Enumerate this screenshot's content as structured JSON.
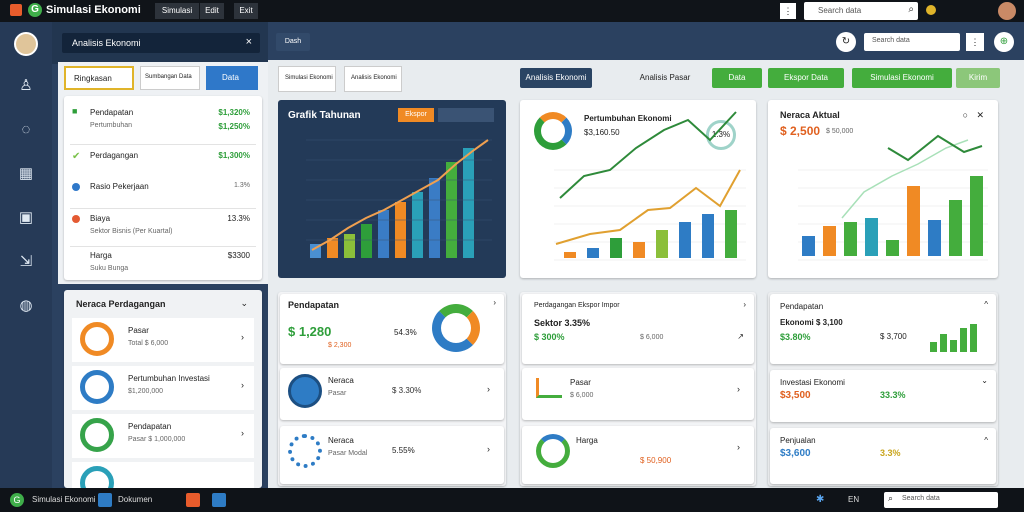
{
  "app": {
    "title": "Simulasi Ekonomi",
    "tab1": "Simulasi",
    "tab2": "Edit",
    "tab3": "Exit"
  },
  "top": {
    "search_placeholder": "Search data"
  },
  "sidebar": {
    "header": "Analisis Ekonomi",
    "panel_title": "Ringkasan Ekonomi",
    "tab_a": "Ringkasan",
    "tab_b": "Sumbangan Data",
    "tab_c": "Data"
  },
  "summary": [
    {
      "label": "Pendapatan",
      "sub": "Pertumbuhan",
      "value": "$1,320%",
      "sub2": "$1,250%"
    },
    {
      "label": "Perdagangan",
      "value": "$1,300%"
    },
    {
      "label": "Rasio Pekerjaan",
      "value": "1.3%"
    },
    {
      "label": "Biaya",
      "value": "13.3%",
      "sub": "Sektor Bisnis (Per Kuartal)"
    },
    {
      "label": "Harga",
      "value": "$3300",
      "sub": "Suku Bunga"
    }
  ],
  "lower_left": {
    "title": "Neraca Perdagangan",
    "items": [
      {
        "label": "Pasar",
        "sub": "Total $ 6,000"
      },
      {
        "label": "Pertumbuhan Investasi",
        "sub": "$1,200,000"
      },
      {
        "label": "Pendapatan",
        "sub": "Pasar $ 1,000,000"
      }
    ]
  },
  "toolbar": {
    "btn1": "Analisis Ekonomi",
    "btn2": "Analisis Pasar",
    "btn3": "Data",
    "btn4": "Ekspor Data",
    "btn5": "Simulasi Ekonomi",
    "btn6": "Kirim",
    "subtab1": "Simulasi Ekonomi",
    "subtab2": "Analisis Ekonomi"
  },
  "charts": {
    "dark_title": "Grafik Tahunan",
    "dark_btn": "Ekspor",
    "mid_title": "Pertumbuhan Ekonomi",
    "mid_value": "$3,160.50",
    "mid_pct": "1.3%",
    "right_title": "Neraca Aktual",
    "right_value": "$ 2,500",
    "right_sub": "$ 50,000"
  },
  "cards": {
    "a_title": "Pendapatan",
    "a_val": "$ 1,280",
    "a_pct": "54.3%",
    "a_sub": "$ 2,300",
    "b_title": "Neraca",
    "b_val": "$ 3.30%",
    "b_sub": "Pasar",
    "c_title": "Neraca",
    "c_val": "5.55%",
    "c_sub": "Pasar Modal",
    "d_title": "Perdagangan Ekspor Impor",
    "d_val": "Sektor 3.35%",
    "d_sub": "$ 300%",
    "e_title": "Pasar",
    "e_val": "$ 6,000",
    "f_title": "Harga",
    "f_val": "$ 50,900",
    "g_title": "Pendapatan",
    "g_val": "Ekonomi $ 3,100",
    "g_pct": "$3.80%",
    "g_sub": "$ 3,700",
    "h_title": "Investasi Ekonomi",
    "h_val": "$3,500",
    "h_pct": "33.3%",
    "i_title": "Penjualan",
    "i_val": "$3,600",
    "i_pct": "3.3%"
  },
  "taskbar": {
    "app1": "Simulasi Ekonomi",
    "app2": "Dokumen",
    "search": "Search data",
    "lang": "EN"
  },
  "colors": {
    "bg": "#2b4160",
    "accent": "#44ad3d",
    "dark": "#233a58"
  }
}
